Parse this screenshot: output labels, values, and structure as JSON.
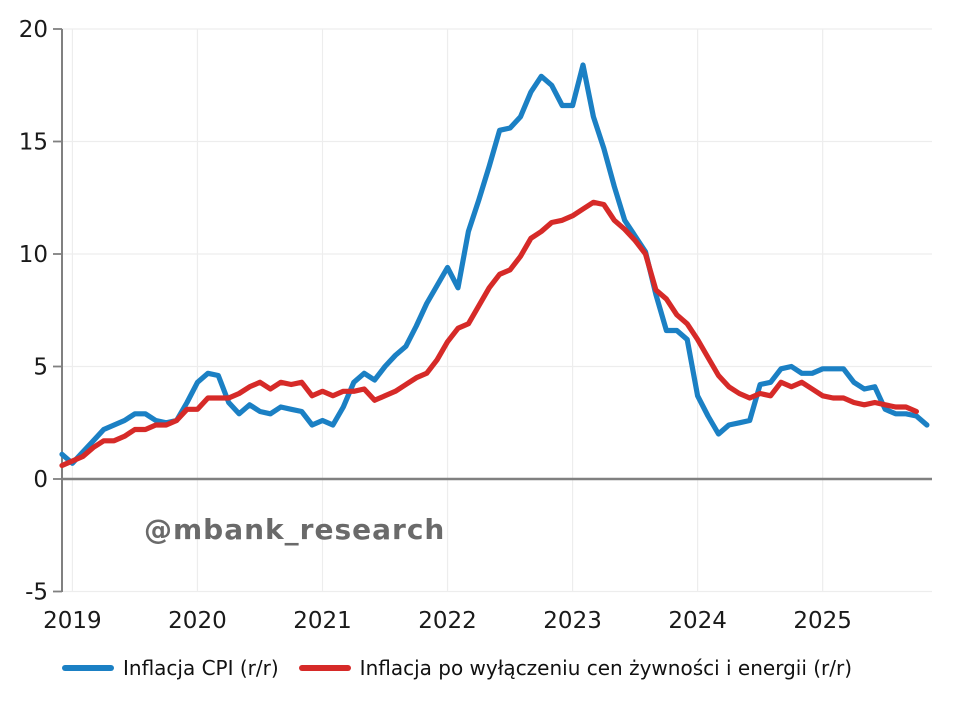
{
  "watermark": "@mbank_research",
  "legend": {
    "cpi": "Inflacja CPI (r/r)",
    "core": "Inflacja po wyłączeniu cen żywności i energii (r/r)"
  },
  "colors": {
    "cpi_line": "#1b80c4",
    "core_line": "#d62a28",
    "axis": "#808080",
    "grid": "#ededed",
    "tick_text": "#1a1a1a",
    "watermark": "#6a6a6a"
  },
  "chart_data": {
    "type": "line",
    "title": "",
    "xlabel": "",
    "ylabel": "",
    "x_start": "2018-12",
    "x_frequency": "monthly",
    "x_ticks": [
      "2019",
      "2020",
      "2021",
      "2022",
      "2023",
      "2024",
      "2025"
    ],
    "y_ticks": [
      -5,
      0,
      5,
      10,
      15,
      20
    ],
    "ylim": [
      -5,
      20
    ],
    "grid": true,
    "zero_line": true,
    "legend_position": "bottom",
    "series": [
      {
        "name": "Inflacja CPI (r/r)",
        "color": "#1b80c4",
        "values": [
          1.1,
          0.7,
          1.2,
          1.7,
          2.2,
          2.4,
          2.6,
          2.9,
          2.9,
          2.6,
          2.5,
          2.6,
          3.4,
          4.3,
          4.7,
          4.6,
          3.4,
          2.9,
          3.3,
          3.0,
          2.9,
          3.2,
          3.1,
          3.0,
          2.4,
          2.6,
          2.4,
          3.2,
          4.3,
          4.7,
          4.4,
          5.0,
          5.5,
          5.9,
          6.8,
          7.8,
          8.6,
          9.4,
          8.5,
          11.0,
          12.4,
          13.9,
          15.5,
          15.6,
          16.1,
          17.2,
          17.9,
          17.5,
          16.6,
          16.6,
          18.4,
          16.1,
          14.7,
          13.0,
          11.5,
          10.8,
          10.1,
          8.2,
          6.6,
          6.6,
          6.2,
          3.7,
          2.8,
          2.0,
          2.4,
          2.5,
          2.6,
          4.2,
          4.3,
          4.9,
          5.0,
          4.7,
          4.7,
          4.9,
          4.9,
          4.9,
          4.3,
          4.0,
          4.1,
          3.1,
          2.9,
          2.9,
          2.8,
          2.4
        ]
      },
      {
        "name": "Inflacja po wyłączeniu cen żywności i energii (r/r)",
        "color": "#d62a28",
        "values": [
          0.6,
          0.8,
          1.0,
          1.4,
          1.7,
          1.7,
          1.9,
          2.2,
          2.2,
          2.4,
          2.4,
          2.6,
          3.1,
          3.1,
          3.6,
          3.6,
          3.6,
          3.8,
          4.1,
          4.3,
          4.0,
          4.3,
          4.2,
          4.3,
          3.7,
          3.9,
          3.7,
          3.9,
          3.9,
          4.0,
          3.5,
          3.7,
          3.9,
          4.2,
          4.5,
          4.7,
          5.3,
          6.1,
          6.7,
          6.9,
          7.7,
          8.5,
          9.1,
          9.3,
          9.9,
          10.7,
          11.0,
          11.4,
          11.5,
          11.7,
          12.0,
          12.3,
          12.2,
          11.5,
          11.1,
          10.6,
          10.0,
          8.4,
          8.0,
          7.3,
          6.9,
          6.2,
          5.4,
          4.6,
          4.1,
          3.8,
          3.6,
          3.8,
          3.7,
          4.3,
          4.1,
          4.3,
          4.0,
          3.7,
          3.6,
          3.6,
          3.4,
          3.3,
          3.4,
          3.3,
          3.2,
          3.2,
          3.0
        ]
      }
    ]
  }
}
